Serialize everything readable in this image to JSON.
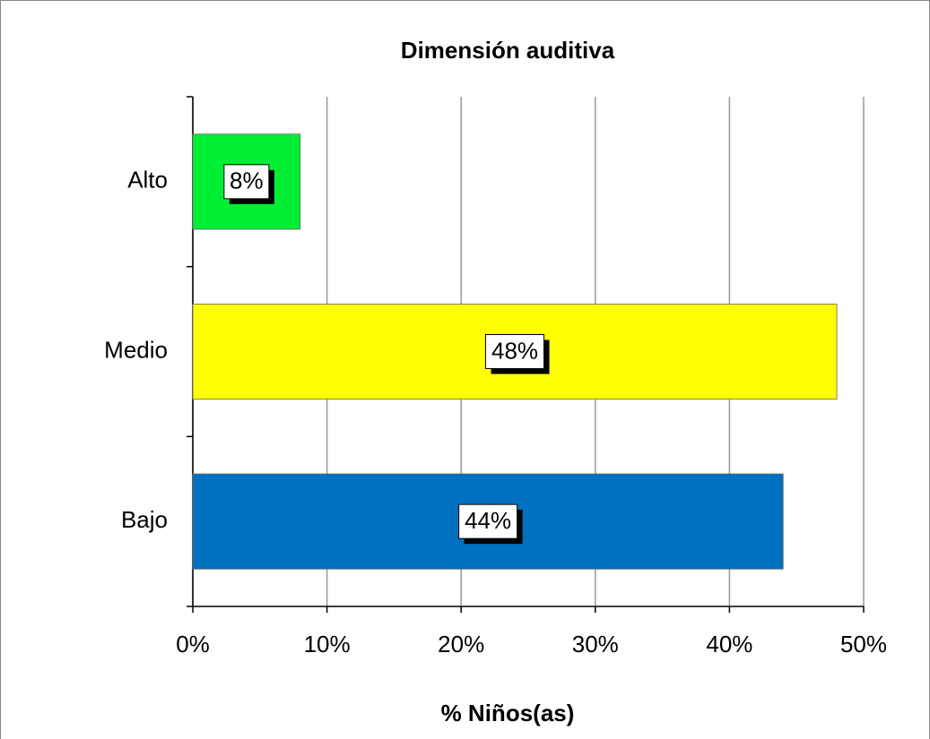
{
  "chart_data": {
    "type": "barh",
    "title": "Dimensión auditiva",
    "xlabel": "% Niños(as)",
    "categories": [
      "Alto",
      "Medio",
      "Bajo"
    ],
    "values": [
      8,
      48,
      44
    ],
    "value_labels": [
      "8%",
      "48%",
      "44%"
    ],
    "colors": [
      "#00ee33",
      "#ffff00",
      "#0070c0"
    ],
    "xlim": [
      0,
      50
    ],
    "xticks": [
      {
        "value": 0,
        "label": "0%"
      },
      {
        "value": 10,
        "label": "10%"
      },
      {
        "value": 20,
        "label": "20%"
      },
      {
        "value": 30,
        "label": "30%"
      },
      {
        "value": 40,
        "label": "40%"
      },
      {
        "value": 50,
        "label": "50%"
      }
    ],
    "grid": true
  }
}
